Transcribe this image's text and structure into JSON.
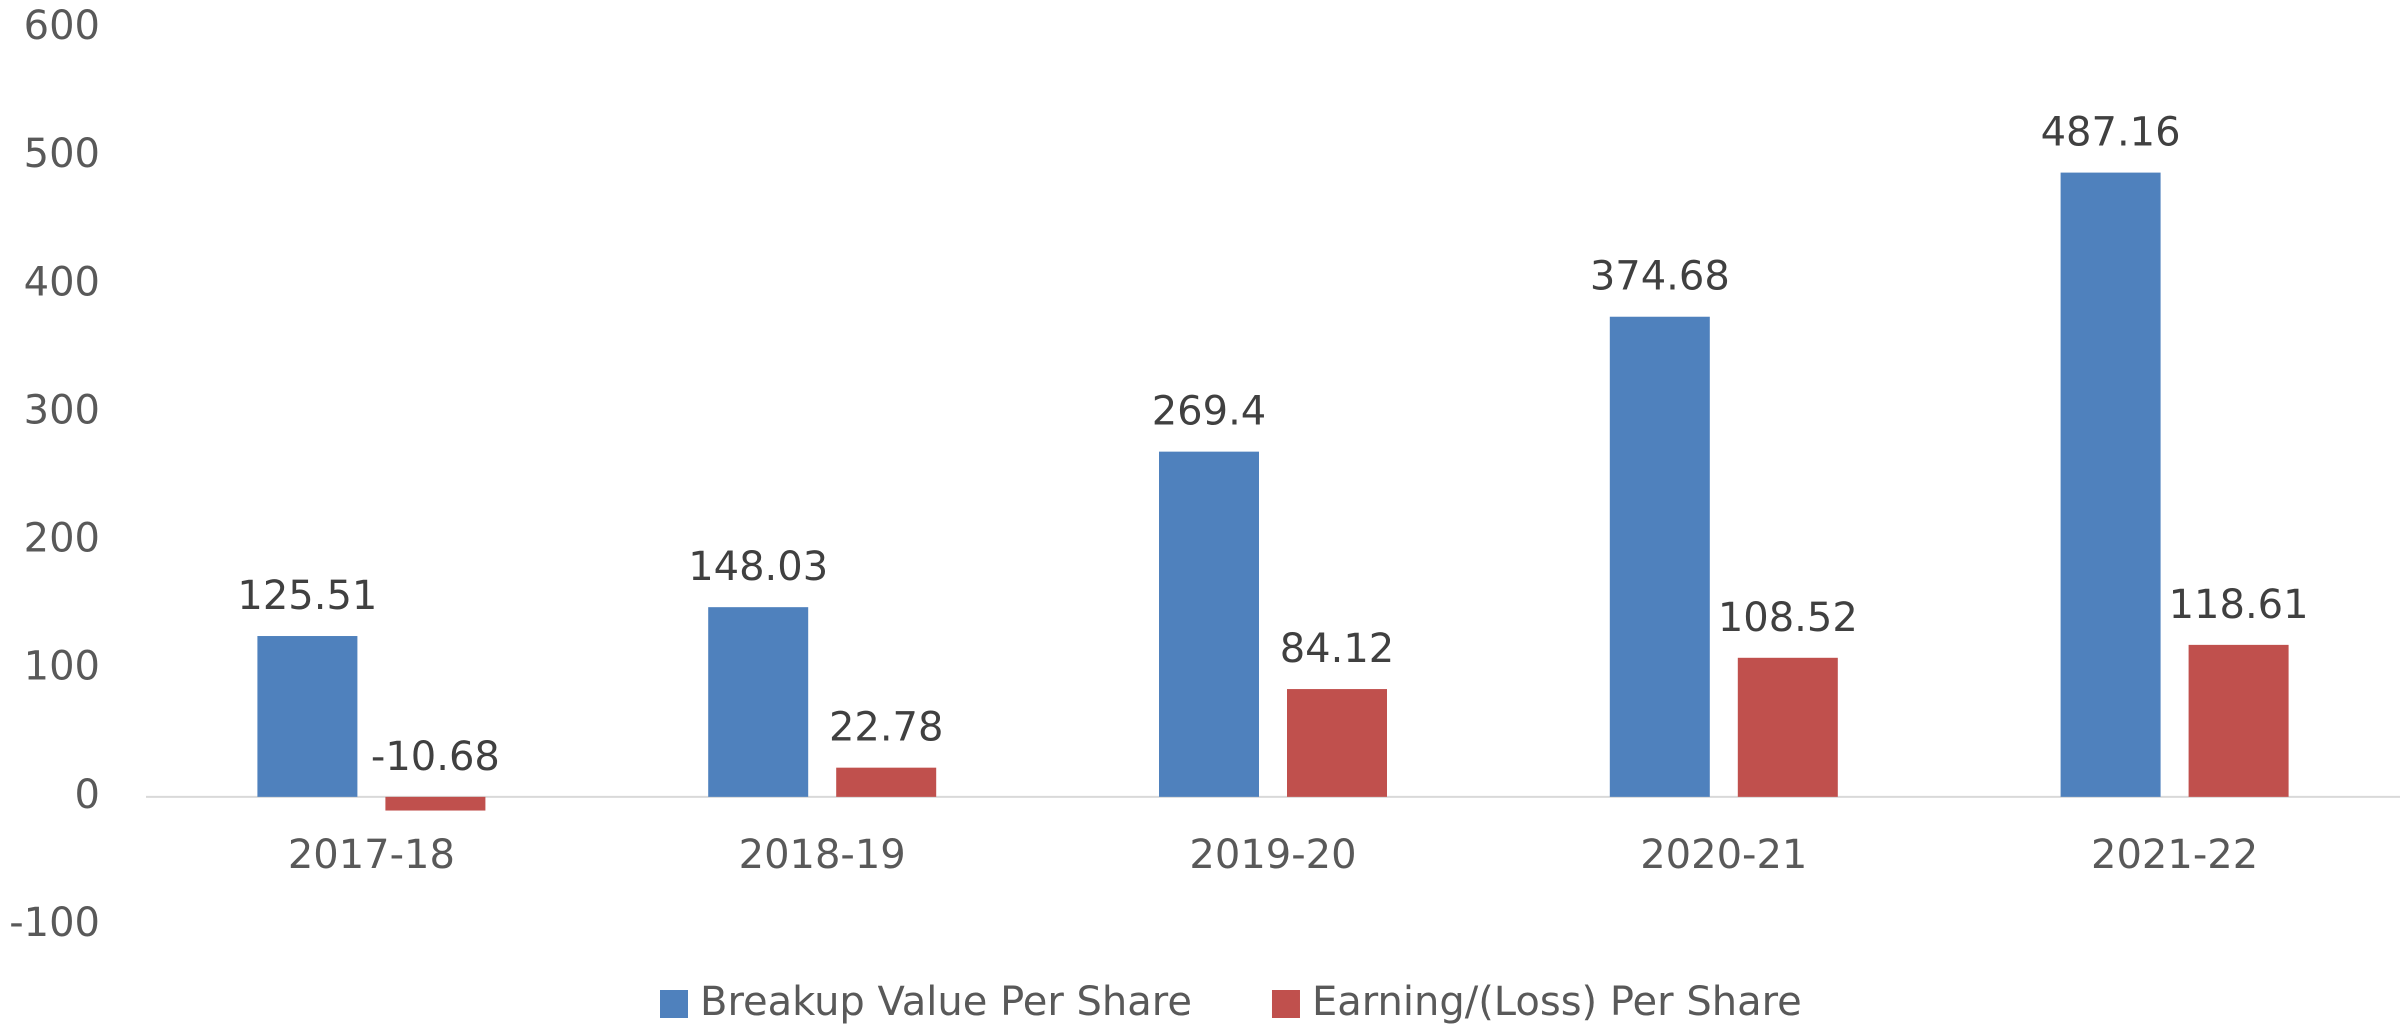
{
  "chart_data": {
    "type": "bar",
    "categories": [
      "2017-18",
      "2018-19",
      "2019-20",
      "2020-21",
      "2021-22"
    ],
    "series": [
      {
        "name": "Breakup Value Per Share",
        "color": "#4f81bd",
        "values": [
          125.51,
          148.03,
          269.4,
          374.68,
          487.16
        ]
      },
      {
        "name": "Earning/(Loss) Per Share",
        "color": "#c0504d",
        "values": [
          -10.68,
          22.78,
          84.12,
          108.52,
          118.61
        ]
      }
    ],
    "ylim": [
      -100,
      600
    ],
    "yticks": [
      -100,
      0,
      100,
      200,
      300,
      400,
      500,
      600
    ],
    "grid": false,
    "legend": "bottom"
  }
}
